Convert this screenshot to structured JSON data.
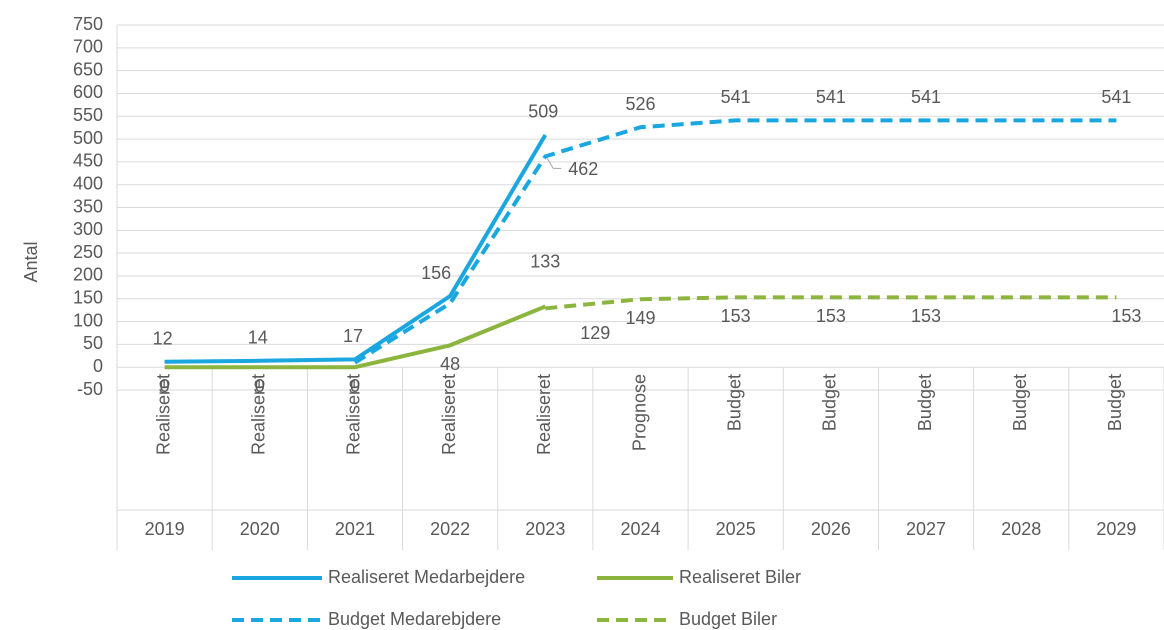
{
  "chart_data": {
    "type": "line",
    "y_label": "Antal",
    "categories": [
      "2019",
      "2020",
      "2021",
      "2022",
      "2023",
      "2024",
      "2025",
      "2026",
      "2027",
      "2028",
      "2029"
    ],
    "category_labels": [
      "Realiseret",
      "Realiseret",
      "Realiseret",
      "Realiseret",
      "Realiseret",
      "Prognose",
      "Budget",
      "Budget",
      "Budget",
      "Budget",
      "Budget"
    ],
    "ylim": [
      -50,
      750
    ],
    "yticks": [
      -50,
      0,
      50,
      100,
      150,
      200,
      250,
      300,
      350,
      400,
      450,
      500,
      550,
      600,
      650,
      700,
      750
    ],
    "grid": true,
    "series": [
      {
        "name": "Realiseret Medarbejdere",
        "color": "#1aa7e0",
        "dashed": false,
        "values": [
          12,
          14,
          17,
          156,
          509,
          null,
          null,
          null,
          null,
          null,
          null
        ],
        "value_labels": [
          "12",
          "14",
          "17",
          "156",
          "509",
          null,
          null,
          null,
          null,
          null,
          null
        ]
      },
      {
        "name": "Realiseret Biler",
        "color": "#8cb53f",
        "dashed": false,
        "values": [
          0,
          0,
          0,
          48,
          133,
          null,
          null,
          null,
          null,
          null,
          null
        ],
        "value_labels": [
          "0",
          "0",
          "0",
          "48",
          "133",
          null,
          null,
          null,
          null,
          null,
          null
        ]
      },
      {
        "name": "Budget Medarebjdere",
        "color": "#1aa7e0",
        "dashed": true,
        "values": [
          null,
          null,
          10,
          140,
          462,
          526,
          541,
          541,
          541,
          541,
          541
        ],
        "value_labels": [
          null,
          null,
          null,
          null,
          "462",
          "526",
          "541",
          "541",
          "541",
          null,
          "541"
        ]
      },
      {
        "name": "Budget Biler",
        "color": "#8cb53f",
        "dashed": true,
        "values": [
          null,
          null,
          null,
          null,
          129,
          149,
          153,
          153,
          153,
          153,
          153
        ],
        "value_labels": [
          null,
          null,
          null,
          null,
          "129",
          "149",
          "153",
          "153",
          "153",
          null,
          "153"
        ]
      }
    ]
  }
}
